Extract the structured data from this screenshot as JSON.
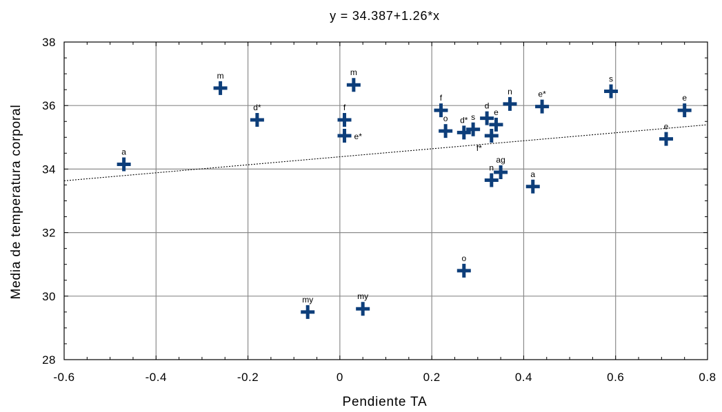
{
  "chart_data": {
    "type": "scatter",
    "title": "y = 34.387+1.26*x",
    "xlabel": "Pendiente TA",
    "ylabel": "Media de temperatura corporal",
    "xlim": [
      -0.6,
      0.8
    ],
    "ylim": [
      28,
      38
    ],
    "x_ticks": [
      "-0.6",
      "-0.4",
      "-0.2",
      "0",
      "0.2",
      "0.4",
      "0.6",
      "0.8"
    ],
    "y_ticks": [
      "28",
      "30",
      "32",
      "34",
      "36",
      "38"
    ],
    "grid": true,
    "marker": "plus",
    "marker_color": "#0d3e7a",
    "trendline": {
      "intercept": 34.387,
      "slope": 1.26,
      "style": "dotted"
    },
    "points": [
      {
        "x": -0.47,
        "y": 34.15,
        "label": "a"
      },
      {
        "x": -0.26,
        "y": 36.55,
        "label": "m"
      },
      {
        "x": -0.18,
        "y": 35.55,
        "label": "d*"
      },
      {
        "x": -0.07,
        "y": 29.5,
        "label": "my"
      },
      {
        "x": 0.01,
        "y": 35.55,
        "label": "f"
      },
      {
        "x": 0.01,
        "y": 35.05,
        "label": "e*"
      },
      {
        "x": 0.03,
        "y": 36.65,
        "label": "m"
      },
      {
        "x": 0.05,
        "y": 29.6,
        "label": "my"
      },
      {
        "x": 0.22,
        "y": 35.85,
        "label": "f"
      },
      {
        "x": 0.23,
        "y": 35.2,
        "label": "o"
      },
      {
        "x": 0.27,
        "y": 35.15,
        "label": "d*"
      },
      {
        "x": 0.27,
        "y": 30.8,
        "label": "o"
      },
      {
        "x": 0.29,
        "y": 35.25,
        "label": "s"
      },
      {
        "x": 0.32,
        "y": 35.6,
        "label": "d"
      },
      {
        "x": 0.33,
        "y": 35.05,
        "label": "f*"
      },
      {
        "x": 0.33,
        "y": 33.65,
        "label": "n"
      },
      {
        "x": 0.34,
        "y": 35.4,
        "label": "e"
      },
      {
        "x": 0.35,
        "y": 33.9,
        "label": "ag"
      },
      {
        "x": 0.37,
        "y": 36.05,
        "label": "n"
      },
      {
        "x": 0.42,
        "y": 33.45,
        "label": "a"
      },
      {
        "x": 0.44,
        "y": 35.97,
        "label": "e*"
      },
      {
        "x": 0.59,
        "y": 36.45,
        "label": "s"
      },
      {
        "x": 0.71,
        "y": 34.95,
        "label": "e"
      },
      {
        "x": 0.75,
        "y": 35.85,
        "label": "e"
      }
    ]
  }
}
